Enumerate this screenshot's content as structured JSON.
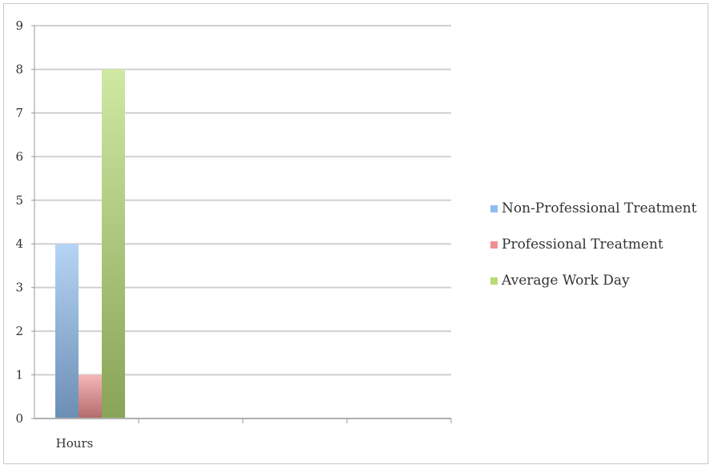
{
  "chart_data": {
    "type": "bar",
    "categories": [
      "Hours",
      "",
      "",
      ""
    ],
    "series": [
      {
        "name": "Non-Professional Treatment",
        "values": [
          4,
          null,
          null,
          null
        ],
        "color": "#8fbdf0"
      },
      {
        "name": "Professional Treatment",
        "values": [
          1,
          null,
          null,
          null
        ],
        "color": "#ef8f8f"
      },
      {
        "name": "Average Work Day",
        "values": [
          8,
          null,
          null,
          null
        ],
        "color": "#b5db72"
      }
    ],
    "title": "",
    "xlabel": "",
    "ylabel": "",
    "ylim": [
      0,
      9
    ],
    "yticks": [
      "0",
      "1",
      "2",
      "3",
      "4",
      "5",
      "6",
      "7",
      "8",
      "9"
    ],
    "grid": true,
    "legend_position": "right"
  }
}
